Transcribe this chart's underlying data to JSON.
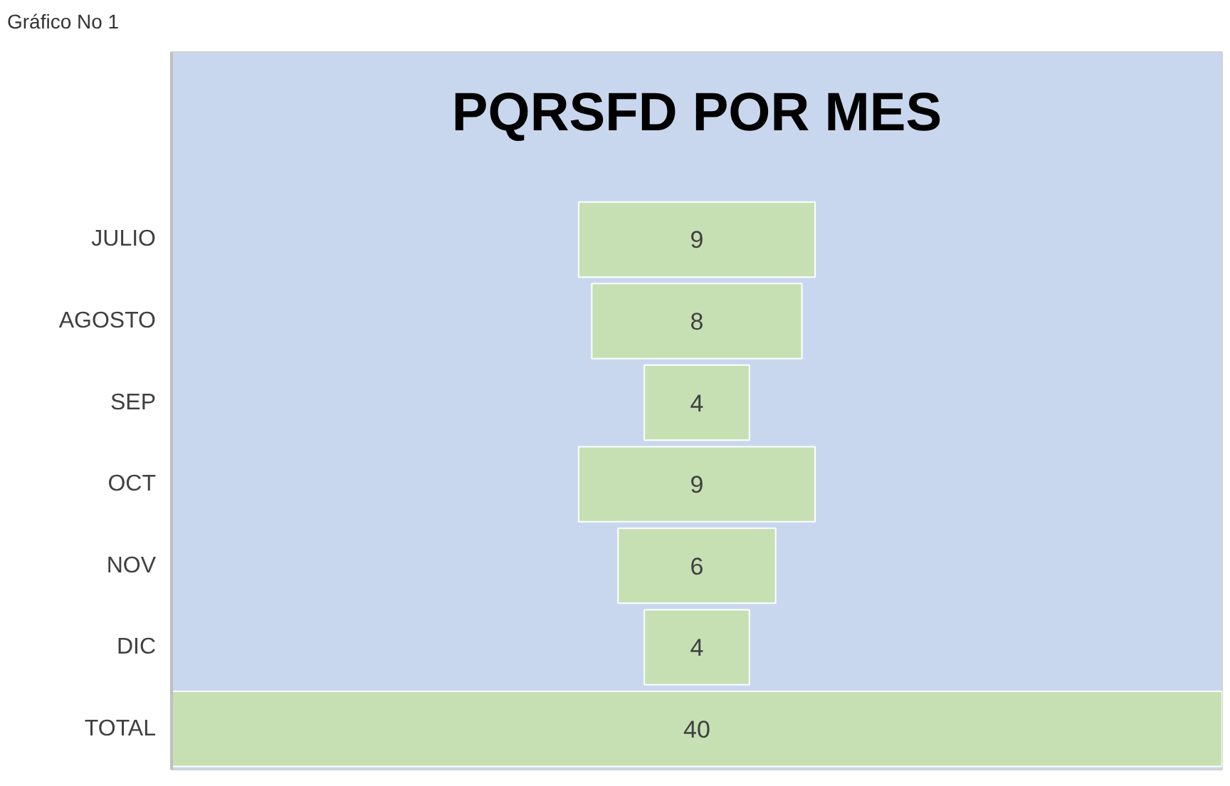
{
  "chart_data": {
    "type": "other",
    "title": "PQRSFD POR MES",
    "categories": [
      "JULIO",
      "AGOSTO",
      "SEP",
      "OCT",
      "NOV",
      "DIC",
      "TOTAL"
    ],
    "values": [
      9,
      8,
      4,
      9,
      6,
      4,
      40
    ],
    "color": "#c6e0b4",
    "data_labels": true,
    "annotations": [
      "Gráfico No 1"
    ]
  }
}
